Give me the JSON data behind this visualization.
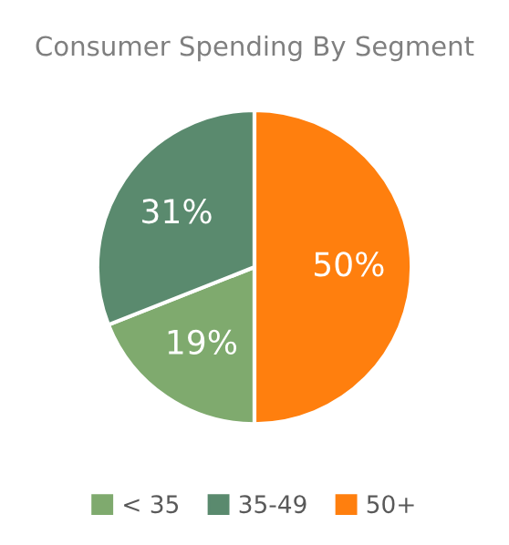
{
  "chart_data": {
    "type": "pie",
    "title": "Consumer Spending By Segment",
    "categories": [
      "< 35",
      "35-49",
      "50+"
    ],
    "values": [
      19,
      31,
      50
    ],
    "colors": [
      "#7faa6e",
      "#5a8a6e",
      "#ff7f0e"
    ],
    "value_labels": [
      "19%",
      "31%",
      "50%"
    ],
    "legend": "bottom"
  }
}
